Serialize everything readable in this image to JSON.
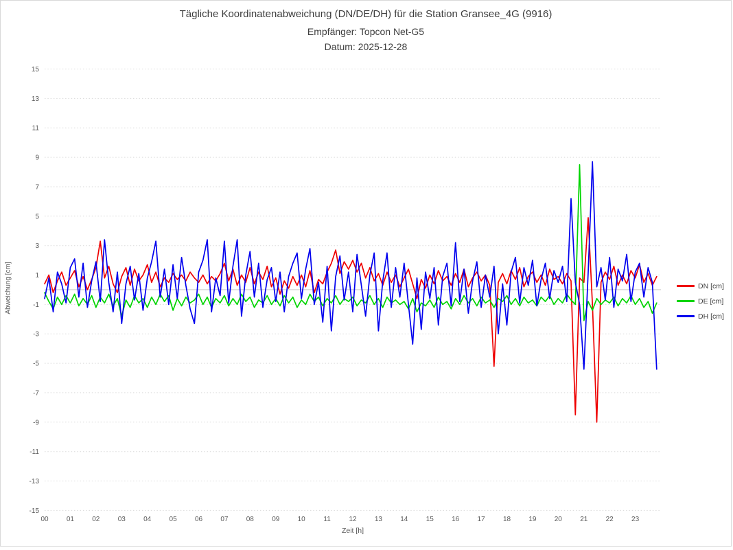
{
  "panel": {
    "background": "#ffffff",
    "border_color": "#d9d9d9"
  },
  "chart_data": {
    "type": "line",
    "title": "Tägliche Koordinatenabweichung (DN/DE/DH) für die Station Gransee_4G (9916)",
    "subtitle": "Empfänger: Topcon Net-G5",
    "date_line": "Datum: 2025-12-28",
    "xlabel": "Zeit [h]",
    "ylabel": "Abweichung [cm]",
    "ylim": [
      -15,
      15
    ],
    "y_ticks": [
      15,
      13,
      11,
      9,
      7,
      5,
      3,
      1,
      -1,
      -3,
      -5,
      -7,
      -9,
      -11,
      -13,
      -15
    ],
    "x_tick_labels": [
      "00",
      "01",
      "02",
      "03",
      "04",
      "05",
      "06",
      "07",
      "08",
      "09",
      "10",
      "11",
      "12",
      "13",
      "14",
      "15",
      "16",
      "17",
      "18",
      "19",
      "20",
      "21",
      "22",
      "23"
    ],
    "x_range_hours": [
      0,
      24
    ],
    "x_step_minutes": 10,
    "grid": {
      "horizontal": "dotted",
      "zero_line": "solid",
      "color": "#d9d9d9",
      "zero_color": "#c9c9c9"
    },
    "legend_position": "right",
    "series": [
      {
        "name": "DN [cm]",
        "color": "#ee0000",
        "values": [
          0.4,
          1.0,
          -0.2,
          0.6,
          1.2,
          0.3,
          0.8,
          1.3,
          0.2,
          0.9,
          0.0,
          0.7,
          1.5,
          3.3,
          0.8,
          1.6,
          0.4,
          -0.2,
          0.9,
          1.5,
          0.3,
          1.4,
          0.6,
          1.0,
          1.7,
          0.5,
          1.2,
          0.2,
          0.8,
          0.5,
          1.1,
          0.7,
          1.0,
          0.6,
          1.2,
          0.8,
          0.5,
          1.0,
          0.4,
          0.9,
          0.6,
          1.1,
          1.8,
          0.6,
          1.4,
          0.3,
          1.0,
          0.5,
          1.5,
          0.4,
          1.2,
          0.7,
          1.6,
          0.2,
          0.8,
          -0.3,
          0.6,
          0.1,
          0.9,
          0.3,
          1.0,
          0.2,
          1.3,
          -0.2,
          0.7,
          0.4,
          1.2,
          1.8,
          2.7,
          1.1,
          1.9,
          1.4,
          2.0,
          1.2,
          1.8,
          0.8,
          1.5,
          0.6,
          1.1,
          0.3,
          1.2,
          0.5,
          1.0,
          0.2,
          0.8,
          1.4,
          0.4,
          -0.6,
          0.7,
          0.1,
          1.0,
          0.4,
          1.3,
          0.6,
          0.9,
          0.3,
          1.1,
          0.5,
          1.4,
          0.2,
          0.8,
          1.2,
          0.6,
          1.0,
          0.3,
          -5.2,
          0.5,
          1.1,
          0.4,
          1.3,
          0.7,
          1.5,
          0.2,
          0.9,
          1.2,
          0.5,
          1.0,
          0.3,
          1.4,
          0.7,
          0.9,
          0.4,
          1.1,
          0.6,
          -8.5,
          0.8,
          0.5,
          4.9,
          -1.0,
          -9.0,
          0.5,
          1.2,
          0.7,
          1.6,
          0.3,
          1.0,
          0.4,
          1.3,
          0.8,
          1.7,
          0.5,
          1.1,
          0.3,
          0.9
        ]
      },
      {
        "name": "DE [cm]",
        "color": "#00d400",
        "values": [
          -0.2,
          -0.8,
          -1.3,
          -0.5,
          -1.0,
          -0.4,
          -0.9,
          -0.3,
          -1.1,
          -0.6,
          -1.0,
          -0.4,
          -1.2,
          -0.5,
          -0.9,
          -0.3,
          -1.1,
          -0.6,
          -1.8,
          -0.7,
          -1.2,
          -0.4,
          -0.9,
          -0.6,
          -1.2,
          -0.5,
          -1.0,
          -0.3,
          -0.8,
          -0.4,
          -1.4,
          -0.6,
          -1.1,
          -0.5,
          -0.9,
          -0.7,
          -0.3,
          -1.0,
          -0.5,
          -1.2,
          -0.6,
          -0.9,
          -0.4,
          -1.1,
          -0.6,
          -1.0,
          -0.3,
          -0.8,
          -0.5,
          -1.2,
          -0.7,
          -0.9,
          -0.4,
          -1.0,
          -0.6,
          -1.1,
          -0.4,
          -0.9,
          -0.5,
          -1.2,
          -0.7,
          -1.0,
          -0.3,
          -0.8,
          -0.5,
          -1.1,
          -0.6,
          -0.9,
          -0.4,
          -1.0,
          -0.6,
          -0.8,
          -0.5,
          -1.1,
          -0.7,
          -0.9,
          -0.4,
          -1.0,
          -0.6,
          -1.2,
          -0.5,
          -0.9,
          -0.7,
          -1.0,
          -0.8,
          -1.3,
          -0.6,
          -1.5,
          -0.9,
          -1.1,
          -0.7,
          -1.2,
          -0.5,
          -1.0,
          -0.8,
          -1.3,
          -0.6,
          -1.0,
          -0.4,
          -0.9,
          -0.6,
          -1.1,
          -0.5,
          -0.9,
          -0.7,
          -1.2,
          -0.6,
          -0.8,
          -0.4,
          -1.0,
          -0.6,
          -1.1,
          -0.5,
          -0.9,
          -0.7,
          -1.1,
          -0.5,
          -0.8,
          -0.4,
          -1.0,
          -0.6,
          -0.9,
          -0.3,
          -0.7,
          -1.0,
          8.5,
          -2.1,
          -0.8,
          -1.4,
          -0.6,
          -1.0,
          -0.7,
          -0.9,
          -0.5,
          -1.1,
          -0.6,
          -0.9,
          -0.4,
          -1.0,
          -0.6,
          -1.2,
          -0.8,
          -1.6,
          -0.9
        ]
      },
      {
        "name": "DH [cm]",
        "color": "#0000ee",
        "values": [
          -0.6,
          0.8,
          -1.5,
          1.2,
          0.4,
          -0.9,
          1.5,
          2.1,
          -0.5,
          1.8,
          -1.2,
          0.6,
          1.9,
          -0.8,
          3.4,
          0.5,
          -1.5,
          1.2,
          -2.3,
          0.4,
          1.6,
          -0.7,
          1.1,
          -1.4,
          0.8,
          1.9,
          3.3,
          -0.5,
          1.4,
          -1.0,
          1.7,
          -0.6,
          2.2,
          0.3,
          -1.3,
          -2.3,
          1.2,
          2.0,
          3.4,
          -1.5,
          0.8,
          -0.4,
          3.3,
          -0.9,
          1.6,
          3.4,
          -1.8,
          1.0,
          2.6,
          -0.5,
          1.8,
          -1.2,
          0.7,
          1.5,
          -0.8,
          1.2,
          -1.5,
          0.9,
          1.8,
          2.5,
          -0.6,
          1.4,
          2.8,
          -1.0,
          0.5,
          -2.2,
          1.6,
          -2.8,
          0.9,
          2.3,
          -0.7,
          1.2,
          -1.5,
          2.4,
          0.3,
          -1.8,
          1.0,
          2.5,
          -2.8,
          0.6,
          2.5,
          -1.2,
          1.5,
          -0.5,
          1.8,
          -1.0,
          -3.7,
          0.8,
          -2.7,
          1.2,
          -0.6,
          1.5,
          -2.4,
          0.9,
          1.8,
          -1.1,
          3.2,
          -0.8,
          1.4,
          -1.6,
          0.6,
          1.9,
          -1.2,
          1.0,
          -0.5,
          1.6,
          -3.0,
          0.4,
          -2.4,
          1.2,
          2.2,
          -0.9,
          1.5,
          0.3,
          2.0,
          -1.1,
          0.7,
          1.8,
          -0.6,
          1.3,
          0.5,
          1.6,
          -0.8,
          6.2,
          0.5,
          -1.0,
          -5.4,
          1.2,
          8.7,
          0.2,
          1.5,
          -0.7,
          2.2,
          -1.2,
          1.4,
          0.6,
          2.4,
          -0.8,
          1.2,
          1.8,
          -0.5,
          1.5,
          0.5,
          -5.4
        ]
      }
    ]
  }
}
